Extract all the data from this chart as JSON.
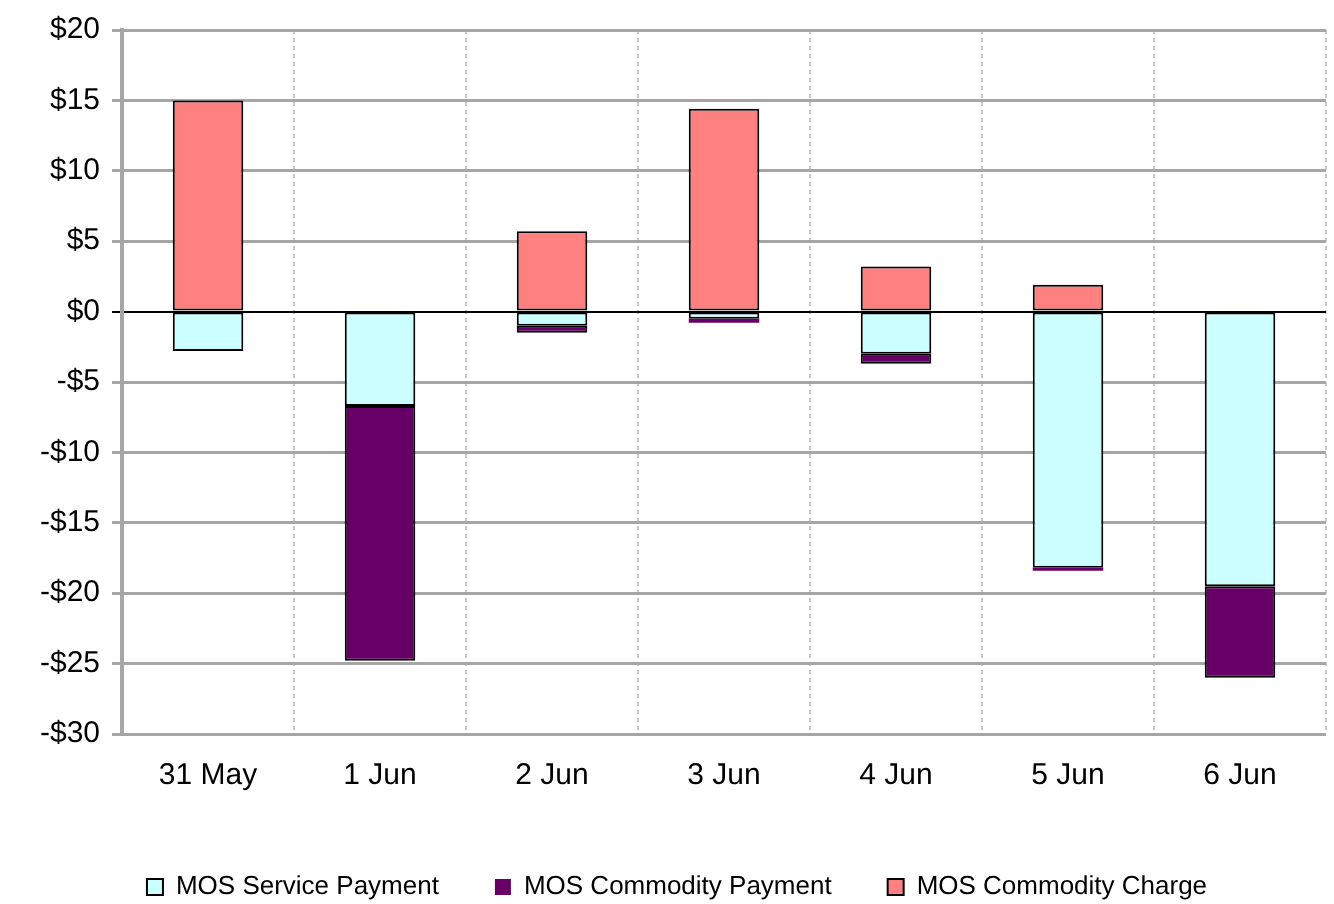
{
  "chart_data": {
    "type": "bar",
    "stacked": true,
    "categories": [
      "31 May",
      "1 Jun",
      "2 Jun",
      "3 Jun",
      "4 Jun",
      "5 Jun",
      "6 Jun"
    ],
    "series": [
      {
        "name": "MOS Service Payment",
        "color": "#ccffff",
        "values": [
          -2.8,
          -6.7,
          -1.0,
          -0.5,
          -3.0,
          -18.2,
          -19.5
        ]
      },
      {
        "name": "MOS Commodity Payment",
        "color": "#660066",
        "values": [
          0,
          -18.1,
          -0.5,
          -0.3,
          -0.7,
          -0.2,
          -6.5
        ]
      },
      {
        "name": "MOS Commodity Charge",
        "color": "#ff8080",
        "values": [
          15.0,
          0,
          5.7,
          14.4,
          3.2,
          1.9,
          0
        ]
      }
    ],
    "ylim": [
      -30,
      20
    ],
    "yticks": [
      {
        "value": -30,
        "label": "-$30"
      },
      {
        "value": -25,
        "label": "-$25"
      },
      {
        "value": -20,
        "label": "-$20"
      },
      {
        "value": -15,
        "label": "-$15"
      },
      {
        "value": -10,
        "label": "-$10"
      },
      {
        "value": -5,
        "label": "-$5"
      },
      {
        "value": 0,
        "label": "$0"
      },
      {
        "value": 5,
        "label": "$5"
      },
      {
        "value": 10,
        "label": "$10"
      },
      {
        "value": 15,
        "label": "$15"
      },
      {
        "value": 20,
        "label": "$20"
      }
    ],
    "grid": true,
    "legend": "bottom"
  }
}
